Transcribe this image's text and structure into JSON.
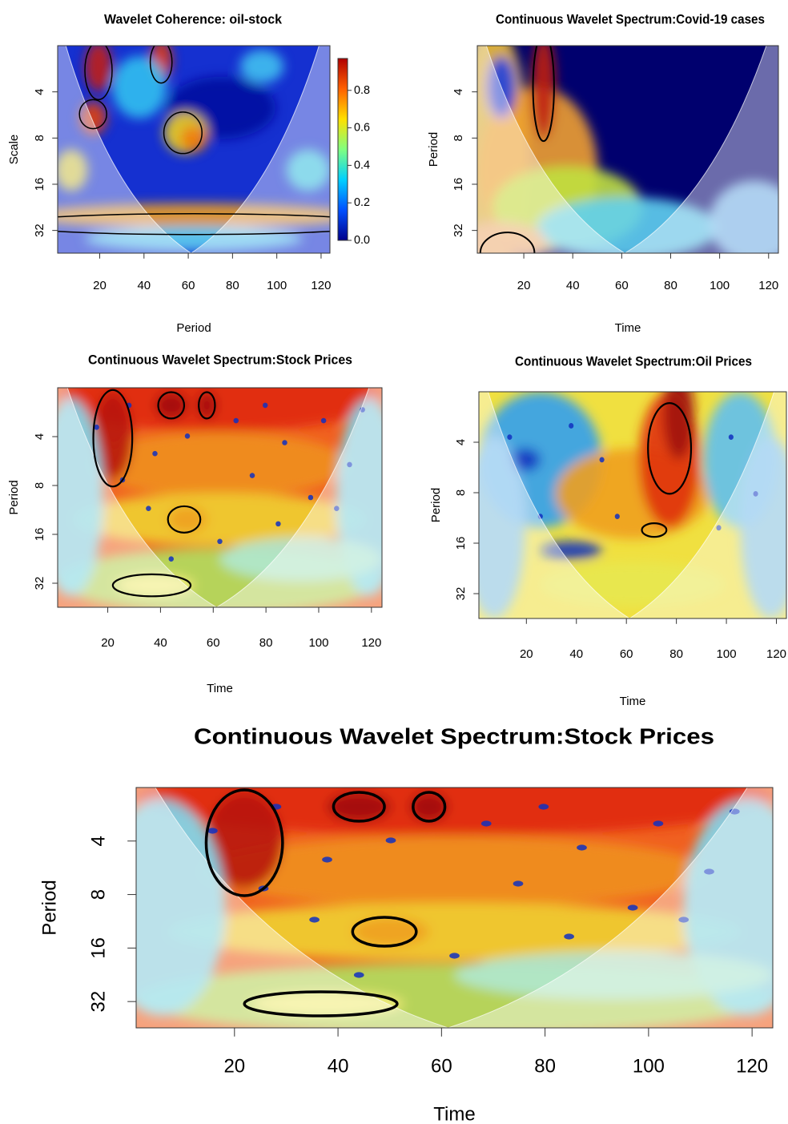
{
  "chart_data": [
    {
      "type": "heatmap",
      "title": "Wavelet Coherence: oil-stock",
      "xlabel": "Period",
      "ylabel": "Scale",
      "xlim": [
        1,
        124
      ],
      "xticks": [
        20,
        40,
        60,
        80,
        100,
        120
      ],
      "ylim": [
        45,
        2
      ],
      "yticks": [
        4,
        8,
        16,
        32
      ],
      "log_y": true,
      "colorbar": {
        "lim": [
          0,
          0.97
        ],
        "colors": [
          "#00008b",
          "#0050ff",
          "#00d0ff",
          "#80ff80",
          "#ffe000",
          "#ff6000",
          "#b00000"
        ],
        "ticks": [
          {
            "value": 0,
            "label": "0.0"
          },
          {
            "value": 0.2,
            "label": "0.2"
          },
          {
            "value": 0.4,
            "label": "0.4"
          },
          {
            "value": 0.6,
            "label": "0.6"
          },
          {
            "value": 0.8,
            "label": "0.8"
          }
        ]
      }
    },
    {
      "type": "heatmap",
      "title": "Continuous Wavelet Spectrum:Covid-19 cases",
      "xlabel": "Time",
      "ylabel": "Period",
      "xlim": [
        1,
        124
      ],
      "xticks": [
        20,
        40,
        60,
        80,
        100,
        120
      ],
      "ylim": [
        45,
        2
      ],
      "yticks": [
        4,
        8,
        16,
        32
      ],
      "log_y": true
    },
    {
      "type": "heatmap",
      "title": "Continuous Wavelet Spectrum:Stock Prices",
      "xlabel": "Time",
      "ylabel": "Period",
      "xlim": [
        1,
        124
      ],
      "xticks": [
        20,
        40,
        60,
        80,
        100,
        120
      ],
      "ylim": [
        45,
        2
      ],
      "yticks": [
        4,
        8,
        16,
        32
      ],
      "log_y": true
    },
    {
      "type": "heatmap",
      "title": "Continuous Wavelet Spectrum:Oil Prices",
      "xlabel": "Time",
      "ylabel": "Period",
      "xlim": [
        1,
        124
      ],
      "xticks": [
        20,
        40,
        60,
        80,
        100,
        120
      ],
      "ylim": [
        45,
        2
      ],
      "yticks": [
        4,
        8,
        16,
        32
      ],
      "log_y": true
    },
    {
      "type": "heatmap",
      "title": "Continuous Wavelet Spectrum:Stock Prices",
      "xlabel": "Time",
      "ylabel": "Period",
      "xlim": [
        1,
        124
      ],
      "xticks": [
        20,
        40,
        60,
        80,
        100,
        120
      ],
      "ylim": [
        45,
        2
      ],
      "yticks": [
        4,
        8,
        16,
        32
      ],
      "log_y": true
    }
  ]
}
